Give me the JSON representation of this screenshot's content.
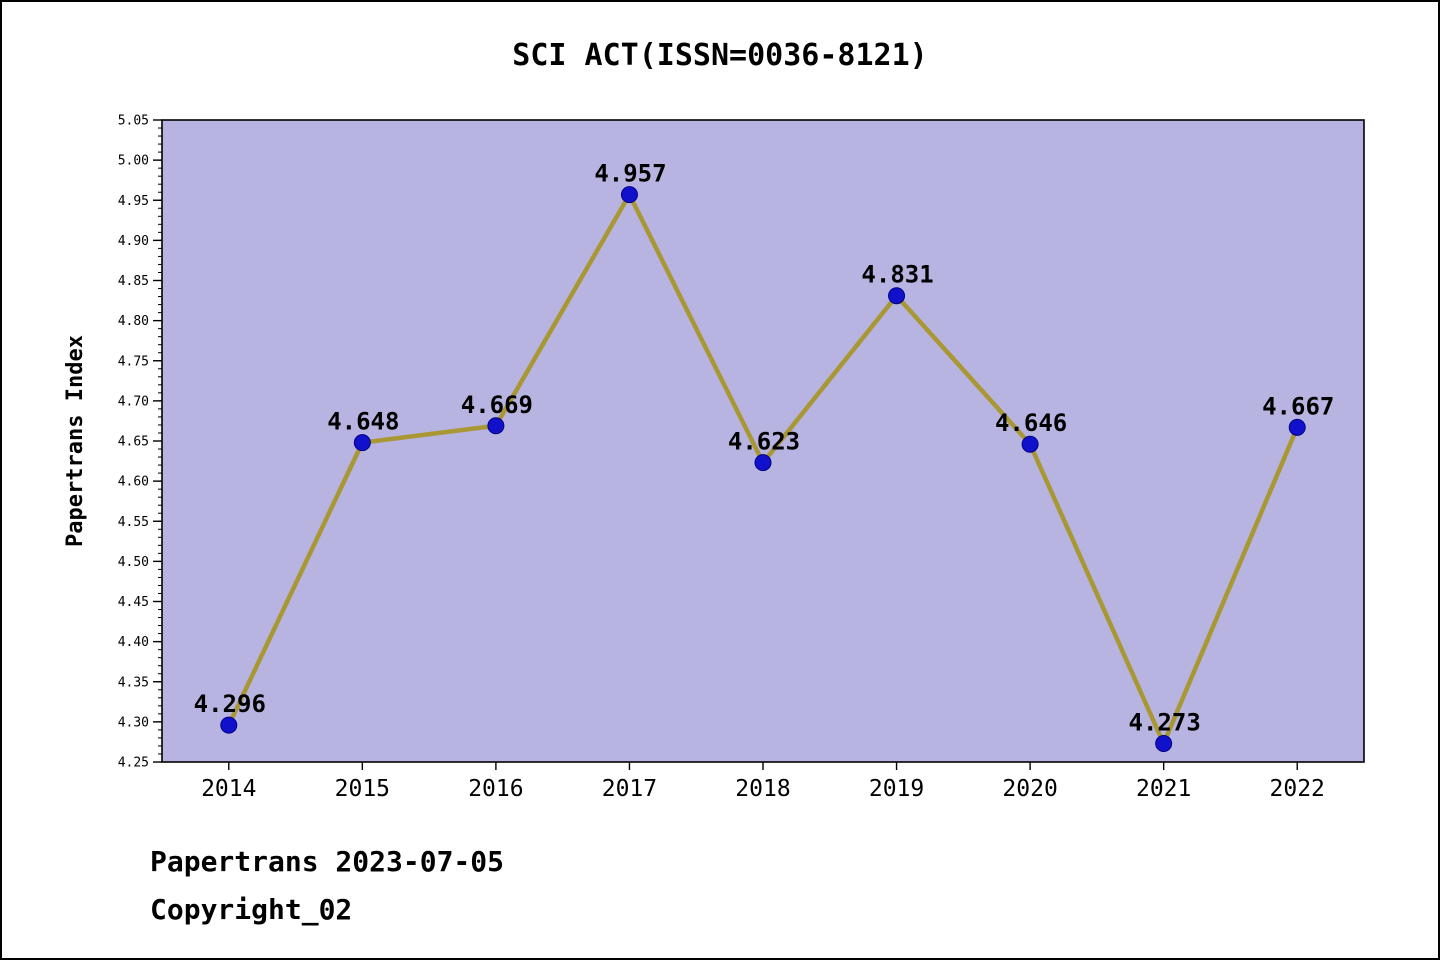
{
  "title": "SCI ACT(ISSN=0036-8121)",
  "footer": {
    "line1": "Papertrans 2023-07-05",
    "line2": "Copyright_02"
  },
  "chart_data": {
    "type": "line",
    "title": "SCI ACT(ISSN=0036-8121)",
    "xlabel": "",
    "ylabel": "Papertrans Index",
    "x": [
      2014,
      2015,
      2016,
      2017,
      2018,
      2019,
      2020,
      2021,
      2022
    ],
    "values": [
      4.296,
      4.648,
      4.669,
      4.957,
      4.623,
      4.831,
      4.646,
      4.273,
      4.667
    ],
    "point_labels": [
      "4.296",
      "4.648",
      "4.669",
      "4.957",
      "4.623",
      "4.831",
      "4.646",
      "4.273",
      "4.667"
    ],
    "ylim": [
      4.25,
      5.05
    ],
    "ytick_step": 0.05,
    "ytick_minor_step": 0.01,
    "grid": false,
    "legend": null,
    "colors": {
      "plot_bg": "#b8b4e2",
      "line": "#a99734",
      "marker_fill": "#1111cc",
      "marker_edge": "#000080",
      "axis": "#000000",
      "text": "#000000"
    }
  }
}
